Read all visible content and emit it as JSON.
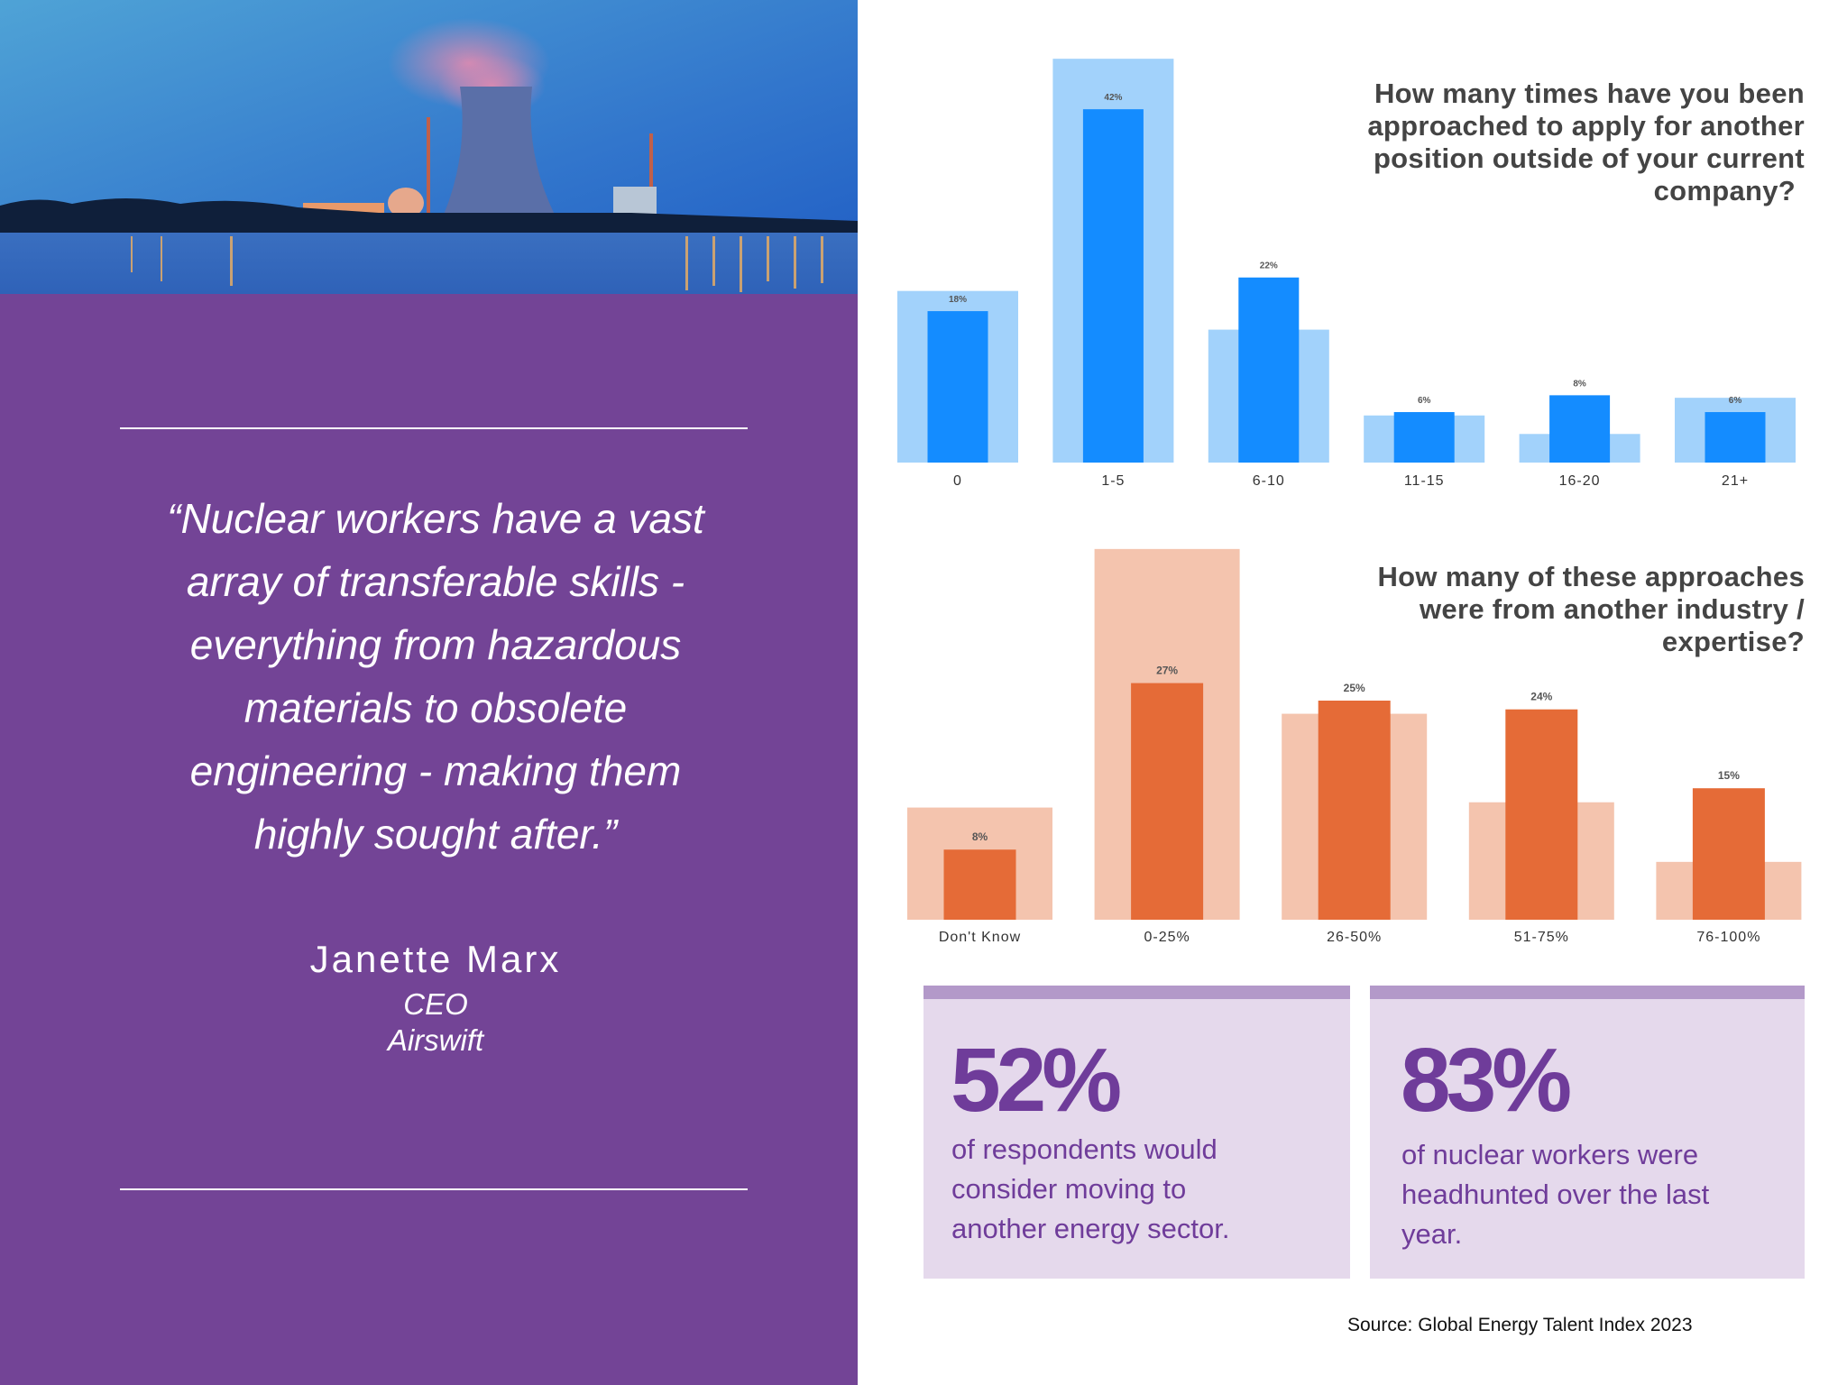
{
  "quote": {
    "lines": [
      "“Nuclear workers have a vast",
      "array of transferable skills -",
      "everything from hazardous",
      "materials to obsolete",
      "engineering - making them",
      "highly sought after.”"
    ],
    "author": "Janette Marx",
    "role": "CEO",
    "company": "Airswift"
  },
  "colors": {
    "purple": "#734496",
    "blue_dark": "#148cff",
    "blue_light": "#a2d2fb",
    "orange_dark": "#e56b37",
    "orange_light": "#f4c4ae",
    "stat_bg": "#e5d9ec",
    "stat_text": "#6f3c9a"
  },
  "chart_data": [
    {
      "type": "bar",
      "title": "How many times have you been approached to apply for another position outside of your current company?",
      "title_lines": [
        "How many times have you been",
        "approached to apply for another",
        "position outside of your current",
        "company?"
      ],
      "categories": [
        "0",
        "1-5",
        "6-10",
        "11-15",
        "16-20",
        "21+"
      ],
      "values": [
        18,
        42,
        22,
        6,
        8,
        6
      ],
      "value_labels": [
        "18%",
        "42%",
        "22%",
        "6%",
        "8%",
        "6%"
      ],
      "background_values": [
        20.4,
        48,
        15.8,
        5.6,
        3.4,
        7.7
      ],
      "unit": "%",
      "xlabel": "",
      "ylabel": "",
      "ylim": [
        0,
        50
      ],
      "grid": false
    },
    {
      "type": "bar",
      "title": "How many of these approaches were from another industry / expertise?",
      "title_lines": [
        "How many of these approaches",
        "were from another industry /",
        "expertise?"
      ],
      "categories": [
        "Don't Know",
        "0-25%",
        "26-50%",
        "51-75%",
        "76-100%"
      ],
      "values": [
        8,
        27,
        25,
        24,
        15
      ],
      "value_labels": [
        "8%",
        "27%",
        "25%",
        "24%",
        "15%"
      ],
      "background_values": [
        12.8,
        42.3,
        23.5,
        13.4,
        6.6
      ],
      "unit": "%",
      "xlabel": "",
      "ylabel": "",
      "ylim": [
        0,
        45
      ],
      "grid": false
    }
  ],
  "stats": [
    {
      "value": "52%",
      "lines": [
        "of respondents would",
        "consider moving to",
        "another energy sector."
      ]
    },
    {
      "value": "83%",
      "lines": [
        "of nuclear workers were",
        "headhunted over the last",
        "year."
      ]
    }
  ],
  "source": "Source: Global Energy Talent Index 2023"
}
